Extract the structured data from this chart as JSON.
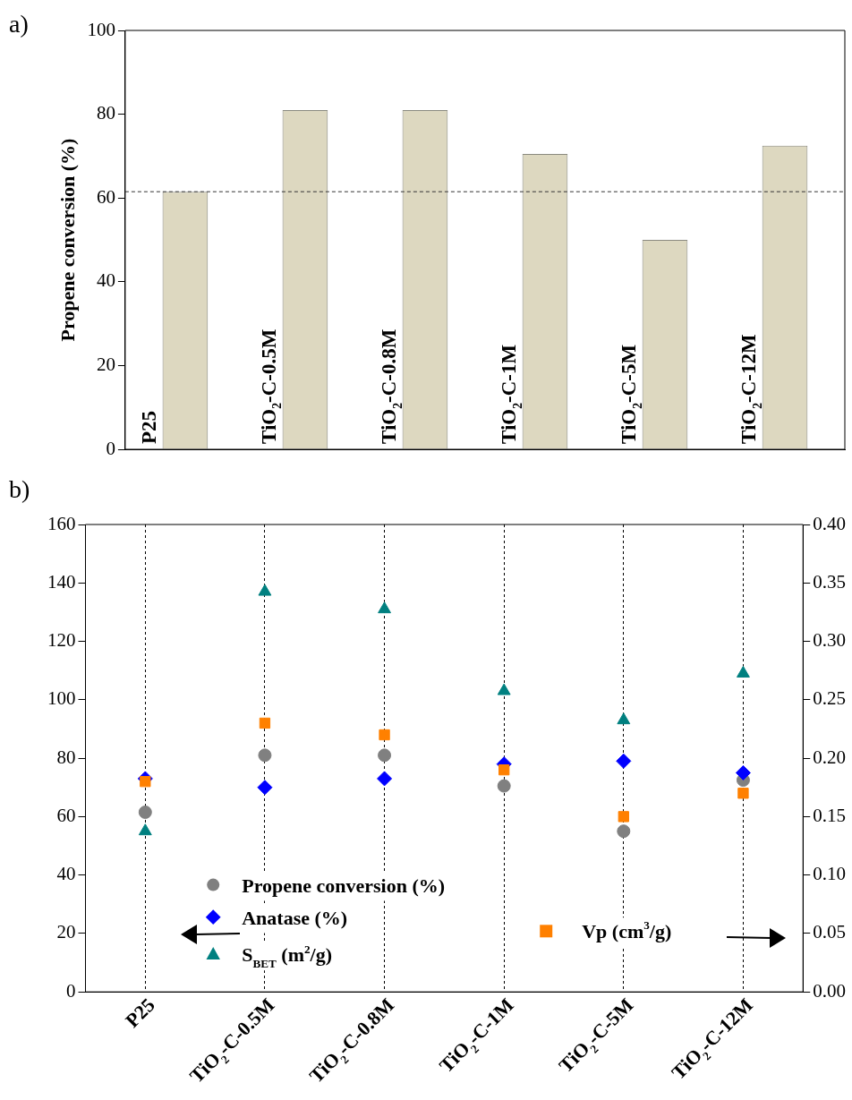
{
  "chart_data": [
    {
      "type": "bar",
      "title": "a)",
      "ylabel": "Propene conversion (%)",
      "categories": [
        "P25",
        "TiO$_{2}$-C-0.5M",
        "TiO$_{2}$-C-0.8M",
        "TiO$_{2}$-C-1M",
        "TiO$_{2}$-C-5M",
        "TiO$_{2}$-C-12M"
      ],
      "values": [
        61.5,
        81,
        81,
        70.5,
        50,
        72.5
      ],
      "color": "#ddd8c0",
      "ylim": [
        0,
        100
      ],
      "yticks": [
        0,
        20,
        40,
        60,
        80,
        100
      ],
      "grid": false,
      "legend": false,
      "ref_lines": [
        {
          "axis": "y",
          "value": 61.5,
          "line_style": "dashed",
          "color": "#333333"
        }
      ]
    },
    {
      "type": "scatter",
      "title": "b)",
      "categories": [
        "P25",
        "TiO$_{2}$-C-0.5M",
        "TiO$_{2}$-C-0.8M",
        "TiO$_{2}$-C-1M",
        "TiO$_{2}$-C-5M",
        "TiO$_{2}$-C-12M"
      ],
      "ylim": [
        0,
        160
      ],
      "yticks": [
        0,
        20,
        40,
        60,
        80,
        100,
        120,
        140,
        160
      ],
      "y2lim": [
        0,
        0.4
      ],
      "y2ticks": [
        {
          "value": 0,
          "label": "0.00"
        },
        {
          "value": 0.05,
          "label": "0.05"
        },
        {
          "value": 0.1,
          "label": "0.10"
        },
        {
          "value": 0.15,
          "label": "0.15"
        },
        {
          "value": 0.2,
          "label": "0.20"
        },
        {
          "value": 0.25,
          "label": "0.25"
        },
        {
          "value": 0.3,
          "label": "0.30"
        },
        {
          "value": 0.35,
          "label": "0.35"
        },
        {
          "value": 0.4,
          "label": "0.40"
        }
      ],
      "grid": "x",
      "legend": "bottom",
      "series": [
        {
          "name": "Propene conversion (%)",
          "color": "#808080",
          "marker": "circle",
          "values": [
            61.5,
            81,
            81,
            70.5,
            55,
            72.5
          ]
        },
        {
          "name": "Anatase (%)",
          "color": "#0000ff",
          "marker": "diamond",
          "values": [
            73,
            70,
            73,
            78,
            79,
            75
          ]
        },
        {
          "name": "S$_{BET}$ (m$^{2}$/g)",
          "color": "#008080",
          "marker": "triangle",
          "values": [
            55,
            137,
            131,
            103,
            93,
            109
          ]
        },
        {
          "name": "Vp (cm$^{3}$/g)",
          "color": "#ff8000",
          "marker": "square",
          "axis": "y2",
          "values": [
            0.18,
            0.23,
            0.22,
            0.19,
            0.15,
            0.17
          ]
        }
      ]
    }
  ]
}
